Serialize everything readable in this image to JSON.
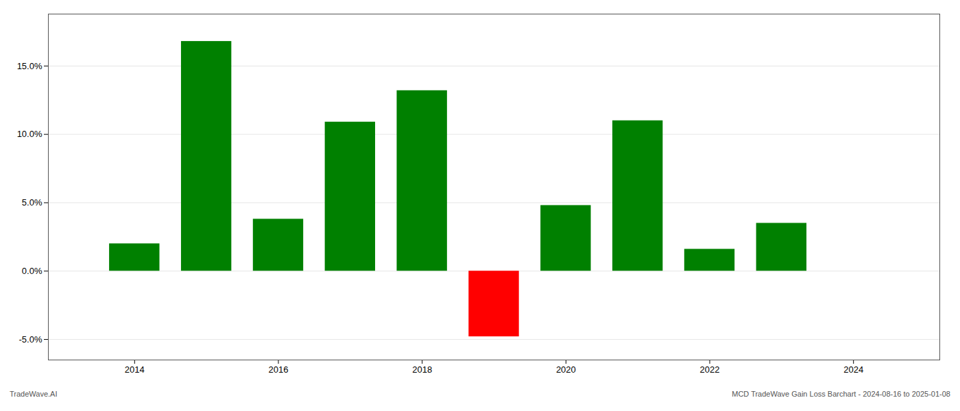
{
  "chart_data": {
    "type": "bar",
    "x": [
      2014,
      2015,
      2016,
      2017,
      2018,
      2019,
      2020,
      2021,
      2022,
      2023
    ],
    "values": [
      0.02,
      0.168,
      0.038,
      0.109,
      0.132,
      -0.048,
      0.048,
      0.11,
      0.016,
      0.035
    ],
    "colors": [
      "#008000",
      "#008000",
      "#008000",
      "#008000",
      "#008000",
      "#ff0000",
      "#008000",
      "#008000",
      "#008000",
      "#008000"
    ],
    "xlim": [
      2012.8,
      2025.2
    ],
    "xticks": [
      2014,
      2016,
      2018,
      2020,
      2022,
      2024
    ],
    "ylim": [
      -0.065,
      0.188
    ],
    "yticks": [
      {
        "value": -0.05,
        "label": "-5.0%"
      },
      {
        "value": 0.0,
        "label": "0.0%"
      },
      {
        "value": 0.05,
        "label": "5.0%"
      },
      {
        "value": 0.1,
        "label": "10.0%"
      },
      {
        "value": 0.15,
        "label": "15.0%"
      }
    ],
    "grid": true,
    "annotations": [
      "TradeWave.AI",
      "MCD TradeWave Gain Loss Barchart - 2024-08-16 to 2025-01-08"
    ]
  }
}
